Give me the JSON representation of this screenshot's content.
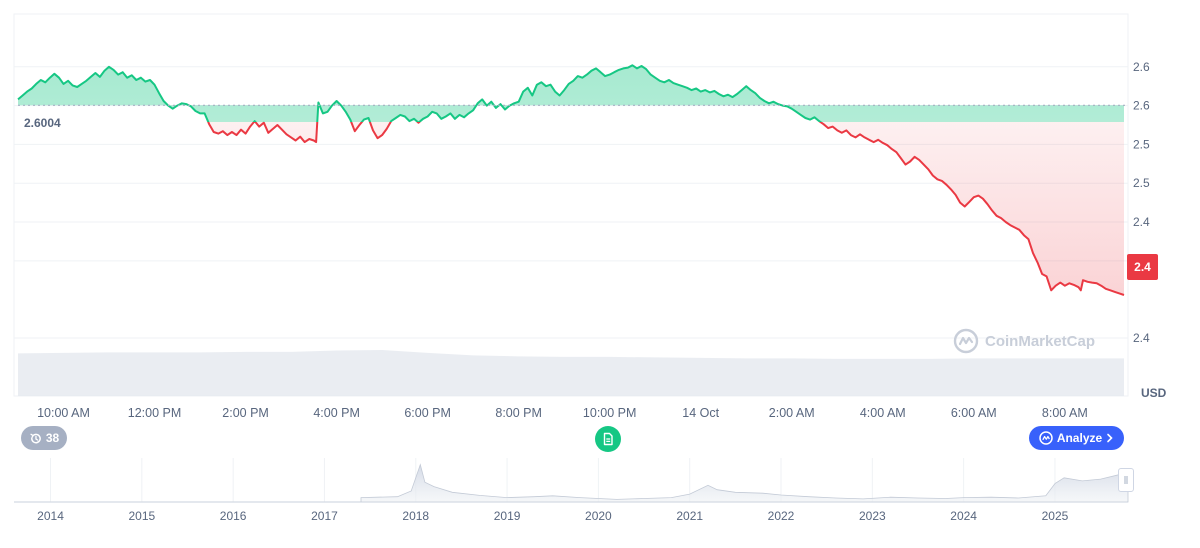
{
  "chart_data": {
    "type": "area",
    "unit": "USD",
    "reference_price": 2.6004,
    "reference_label": "2.6004",
    "current_price_label": "2.4",
    "ylim": [
      2.365,
      2.7
    ],
    "y_ticks": [
      {
        "value": 2.65,
        "label": "2.6"
      },
      {
        "value": 2.6,
        "label": "2.6"
      },
      {
        "value": 2.55,
        "label": "2.5"
      },
      {
        "value": 2.5,
        "label": "2.5"
      },
      {
        "value": 2.45,
        "label": "2.4"
      },
      {
        "value": 2.4,
        "label": "2.4"
      }
    ],
    "x_tick_labels": [
      "10:00 AM",
      "12:00 PM",
      "2:00 PM",
      "4:00 PM",
      "6:00 PM",
      "8:00 PM",
      "10:00 PM",
      "14 Oct",
      "2:00 AM",
      "4:00 AM",
      "6:00 AM",
      "8:00 AM"
    ],
    "x_range_hours": [
      9.0,
      33.3
    ],
    "price_series": [
      [
        9.0,
        2.608
      ],
      [
        9.1,
        2.613
      ],
      [
        9.2,
        2.618
      ],
      [
        9.3,
        2.622
      ],
      [
        9.4,
        2.628
      ],
      [
        9.5,
        2.633
      ],
      [
        9.6,
        2.63
      ],
      [
        9.7,
        2.636
      ],
      [
        9.8,
        2.641
      ],
      [
        9.9,
        2.636
      ],
      [
        10.0,
        2.628
      ],
      [
        10.1,
        2.632
      ],
      [
        10.2,
        2.626
      ],
      [
        10.3,
        2.624
      ],
      [
        10.4,
        2.628
      ],
      [
        10.5,
        2.632
      ],
      [
        10.6,
        2.637
      ],
      [
        10.7,
        2.642
      ],
      [
        10.8,
        2.637
      ],
      [
        10.9,
        2.645
      ],
      [
        11.0,
        2.65
      ],
      [
        11.1,
        2.646
      ],
      [
        11.2,
        2.64
      ],
      [
        11.3,
        2.643
      ],
      [
        11.4,
        2.636
      ],
      [
        11.5,
        2.639
      ],
      [
        11.6,
        2.633
      ],
      [
        11.7,
        2.636
      ],
      [
        11.8,
        2.631
      ],
      [
        11.9,
        2.633
      ],
      [
        12.0,
        2.627
      ],
      [
        12.1,
        2.616
      ],
      [
        12.2,
        2.606
      ],
      [
        12.3,
        2.6
      ],
      [
        12.4,
        2.596
      ],
      [
        12.5,
        2.6
      ],
      [
        12.6,
        2.603
      ],
      [
        12.7,
        2.602
      ],
      [
        12.8,
        2.599
      ],
      [
        12.9,
        2.593
      ],
      [
        13.0,
        2.59
      ],
      [
        13.1,
        2.59
      ],
      [
        13.2,
        2.576
      ],
      [
        13.3,
        2.566
      ],
      [
        13.4,
        2.564
      ],
      [
        13.5,
        2.567
      ],
      [
        13.6,
        2.562
      ],
      [
        13.7,
        2.566
      ],
      [
        13.8,
        2.562
      ],
      [
        13.9,
        2.569
      ],
      [
        14.0,
        2.564
      ],
      [
        14.1,
        2.573
      ],
      [
        14.2,
        2.58
      ],
      [
        14.3,
        2.573
      ],
      [
        14.4,
        2.578
      ],
      [
        14.5,
        2.565
      ],
      [
        14.6,
        2.57
      ],
      [
        14.7,
        2.575
      ],
      [
        14.8,
        2.569
      ],
      [
        14.9,
        2.563
      ],
      [
        15.0,
        2.559
      ],
      [
        15.1,
        2.555
      ],
      [
        15.2,
        2.56
      ],
      [
        15.3,
        2.553
      ],
      [
        15.4,
        2.557
      ],
      [
        15.5,
        2.555
      ],
      [
        15.55,
        2.553
      ],
      [
        15.6,
        2.604
      ],
      [
        15.7,
        2.59
      ],
      [
        15.8,
        2.592
      ],
      [
        15.9,
        2.6
      ],
      [
        16.0,
        2.606
      ],
      [
        16.1,
        2.6
      ],
      [
        16.2,
        2.592
      ],
      [
        16.3,
        2.582
      ],
      [
        16.4,
        2.567
      ],
      [
        16.5,
        2.575
      ],
      [
        16.6,
        2.582
      ],
      [
        16.7,
        2.584
      ],
      [
        16.8,
        2.568
      ],
      [
        16.9,
        2.558
      ],
      [
        17.0,
        2.562
      ],
      [
        17.1,
        2.57
      ],
      [
        17.2,
        2.58
      ],
      [
        17.3,
        2.584
      ],
      [
        17.4,
        2.588
      ],
      [
        17.5,
        2.586
      ],
      [
        17.6,
        2.58
      ],
      [
        17.7,
        2.583
      ],
      [
        17.8,
        2.578
      ],
      [
        17.9,
        2.583
      ],
      [
        18.0,
        2.586
      ],
      [
        18.1,
        2.592
      ],
      [
        18.2,
        2.59
      ],
      [
        18.3,
        2.583
      ],
      [
        18.4,
        2.586
      ],
      [
        18.5,
        2.59
      ],
      [
        18.6,
        2.583
      ],
      [
        18.7,
        2.588
      ],
      [
        18.8,
        2.585
      ],
      [
        18.9,
        2.59
      ],
      [
        19.0,
        2.594
      ],
      [
        19.1,
        2.603
      ],
      [
        19.2,
        2.608
      ],
      [
        19.3,
        2.6
      ],
      [
        19.4,
        2.605
      ],
      [
        19.5,
        2.597
      ],
      [
        19.6,
        2.602
      ],
      [
        19.7,
        2.595
      ],
      [
        19.8,
        2.6
      ],
      [
        19.9,
        2.603
      ],
      [
        20.0,
        2.605
      ],
      [
        20.1,
        2.618
      ],
      [
        20.2,
        2.623
      ],
      [
        20.3,
        2.613
      ],
      [
        20.4,
        2.627
      ],
      [
        20.5,
        2.63
      ],
      [
        20.6,
        2.625
      ],
      [
        20.7,
        2.627
      ],
      [
        20.8,
        2.618
      ],
      [
        20.9,
        2.613
      ],
      [
        21.0,
        2.62
      ],
      [
        21.1,
        2.628
      ],
      [
        21.2,
        2.632
      ],
      [
        21.3,
        2.638
      ],
      [
        21.4,
        2.636
      ],
      [
        21.5,
        2.64
      ],
      [
        21.6,
        2.645
      ],
      [
        21.7,
        2.648
      ],
      [
        21.8,
        2.643
      ],
      [
        21.9,
        2.638
      ],
      [
        22.0,
        2.64
      ],
      [
        22.1,
        2.643
      ],
      [
        22.2,
        2.646
      ],
      [
        22.3,
        2.648
      ],
      [
        22.4,
        2.649
      ],
      [
        22.5,
        2.652
      ],
      [
        22.6,
        2.648
      ],
      [
        22.7,
        2.651
      ],
      [
        22.8,
        2.647
      ],
      [
        22.9,
        2.64
      ],
      [
        23.0,
        2.636
      ],
      [
        23.1,
        2.632
      ],
      [
        23.2,
        2.63
      ],
      [
        23.3,
        2.633
      ],
      [
        23.4,
        2.629
      ],
      [
        23.5,
        2.627
      ],
      [
        23.6,
        2.625
      ],
      [
        23.7,
        2.623
      ],
      [
        23.8,
        2.62
      ],
      [
        23.9,
        2.622
      ],
      [
        24.0,
        2.618
      ],
      [
        24.1,
        2.62
      ],
      [
        24.2,
        2.617
      ],
      [
        24.3,
        2.619
      ],
      [
        24.4,
        2.615
      ],
      [
        24.5,
        2.612
      ],
      [
        24.6,
        2.614
      ],
      [
        24.7,
        2.611
      ],
      [
        24.8,
        2.615
      ],
      [
        24.9,
        2.62
      ],
      [
        25.0,
        2.625
      ],
      [
        25.1,
        2.62
      ],
      [
        25.2,
        2.616
      ],
      [
        25.3,
        2.61
      ],
      [
        25.4,
        2.606
      ],
      [
        25.5,
        2.603
      ],
      [
        25.6,
        2.605
      ],
      [
        25.7,
        2.602
      ],
      [
        25.8,
        2.6
      ],
      [
        25.9,
        2.599
      ],
      [
        26.0,
        2.596
      ],
      [
        26.1,
        2.592
      ],
      [
        26.2,
        2.588
      ],
      [
        26.3,
        2.584
      ],
      [
        26.4,
        2.582
      ],
      [
        26.5,
        2.585
      ],
      [
        26.6,
        2.58
      ],
      [
        26.7,
        2.576
      ],
      [
        26.8,
        2.571
      ],
      [
        26.9,
        2.573
      ],
      [
        27.0,
        2.568
      ],
      [
        27.1,
        2.565
      ],
      [
        27.2,
        2.568
      ],
      [
        27.3,
        2.562
      ],
      [
        27.4,
        2.559
      ],
      [
        27.5,
        2.563
      ],
      [
        27.6,
        2.559
      ],
      [
        27.7,
        2.556
      ],
      [
        27.8,
        2.553
      ],
      [
        27.9,
        2.556
      ],
      [
        28.0,
        2.552
      ],
      [
        28.1,
        2.549
      ],
      [
        28.2,
        2.544
      ],
      [
        28.3,
        2.54
      ],
      [
        28.4,
        2.532
      ],
      [
        28.5,
        2.524
      ],
      [
        28.6,
        2.528
      ],
      [
        28.7,
        2.534
      ],
      [
        28.8,
        2.53
      ],
      [
        28.9,
        2.524
      ],
      [
        29.0,
        2.518
      ],
      [
        29.1,
        2.51
      ],
      [
        29.2,
        2.505
      ],
      [
        29.3,
        2.503
      ],
      [
        29.4,
        2.498
      ],
      [
        29.5,
        2.492
      ],
      [
        29.6,
        2.485
      ],
      [
        29.7,
        2.475
      ],
      [
        29.8,
        2.47
      ],
      [
        29.9,
        2.476
      ],
      [
        30.0,
        2.482
      ],
      [
        30.1,
        2.484
      ],
      [
        30.2,
        2.48
      ],
      [
        30.3,
        2.473
      ],
      [
        30.4,
        2.465
      ],
      [
        30.5,
        2.458
      ],
      [
        30.6,
        2.455
      ],
      [
        30.7,
        2.45
      ],
      [
        30.8,
        2.446
      ],
      [
        30.9,
        2.443
      ],
      [
        31.0,
        2.44
      ],
      [
        31.1,
        2.433
      ],
      [
        31.2,
        2.428
      ],
      [
        31.3,
        2.41
      ],
      [
        31.4,
        2.398
      ],
      [
        31.5,
        2.383
      ],
      [
        31.6,
        2.38
      ],
      [
        31.7,
        2.362
      ],
      [
        31.8,
        2.368
      ],
      [
        31.9,
        2.372
      ],
      [
        32.0,
        2.368
      ],
      [
        32.1,
        2.371
      ],
      [
        32.2,
        2.369
      ],
      [
        32.3,
        2.366
      ],
      [
        32.35,
        2.362
      ],
      [
        32.4,
        2.375
      ],
      [
        32.5,
        2.373
      ],
      [
        32.6,
        2.372
      ],
      [
        32.7,
        2.371
      ],
      [
        32.8,
        2.368
      ],
      [
        32.9,
        2.364
      ],
      [
        33.0,
        2.362
      ],
      [
        33.1,
        2.36
      ],
      [
        33.2,
        2.358
      ],
      [
        33.3,
        2.356
      ]
    ],
    "volume_series": [
      [
        9.0,
        0.86
      ],
      [
        10.0,
        0.87
      ],
      [
        11.0,
        0.88
      ],
      [
        12.0,
        0.88
      ],
      [
        13.0,
        0.88
      ],
      [
        14.0,
        0.89
      ],
      [
        15.0,
        0.89
      ],
      [
        16.0,
        0.92
      ],
      [
        17.0,
        0.93
      ],
      [
        18.0,
        0.87
      ],
      [
        19.0,
        0.82
      ],
      [
        20.0,
        0.8
      ],
      [
        21.0,
        0.79
      ],
      [
        22.0,
        0.79
      ],
      [
        23.0,
        0.78
      ],
      [
        24.0,
        0.77
      ],
      [
        25.0,
        0.76
      ],
      [
        26.0,
        0.76
      ],
      [
        27.0,
        0.75
      ],
      [
        28.0,
        0.75
      ],
      [
        29.0,
        0.75
      ],
      [
        30.0,
        0.76
      ],
      [
        31.0,
        0.76
      ],
      [
        32.0,
        0.76
      ],
      [
        33.3,
        0.76
      ]
    ],
    "navigator": {
      "year_labels": [
        "2014",
        "2015",
        "2016",
        "2017",
        "2018",
        "2019",
        "2020",
        "2021",
        "2022",
        "2023",
        "2024",
        "2025"
      ],
      "x_range_years": [
        2013.6,
        2025.8
      ],
      "series": [
        [
          2013.6,
          0
        ],
        [
          2017.4,
          0.0
        ],
        [
          2017.4,
          0.1
        ],
        [
          2017.8,
          0.12
        ],
        [
          2017.95,
          0.25
        ],
        [
          2018.05,
          0.85
        ],
        [
          2018.1,
          0.45
        ],
        [
          2018.2,
          0.35
        ],
        [
          2018.4,
          0.22
        ],
        [
          2018.7,
          0.15
        ],
        [
          2019.0,
          0.1
        ],
        [
          2019.3,
          0.12
        ],
        [
          2019.5,
          0.14
        ],
        [
          2019.8,
          0.1
        ],
        [
          2020.0,
          0.08
        ],
        [
          2020.2,
          0.06
        ],
        [
          2020.5,
          0.08
        ],
        [
          2020.8,
          0.1
        ],
        [
          2021.0,
          0.18
        ],
        [
          2021.2,
          0.38
        ],
        [
          2021.3,
          0.28
        ],
        [
          2021.5,
          0.22
        ],
        [
          2021.8,
          0.2
        ],
        [
          2022.0,
          0.16
        ],
        [
          2022.3,
          0.12
        ],
        [
          2022.6,
          0.09
        ],
        [
          2022.9,
          0.07
        ],
        [
          2023.2,
          0.11
        ],
        [
          2023.5,
          0.09
        ],
        [
          2023.8,
          0.08
        ],
        [
          2024.0,
          0.1
        ],
        [
          2024.3,
          0.11
        ],
        [
          2024.6,
          0.09
        ],
        [
          2024.9,
          0.14
        ],
        [
          2025.0,
          0.42
        ],
        [
          2025.1,
          0.55
        ],
        [
          2025.3,
          0.48
        ],
        [
          2025.5,
          0.52
        ],
        [
          2025.7,
          0.62
        ],
        [
          2025.8,
          0.58
        ]
      ]
    }
  },
  "ui": {
    "history_count": "38",
    "analyze_label": "Analyze",
    "watermark": "CoinMarketCap",
    "colors": {
      "up": "#16c784",
      "down": "#ea3943",
      "grid": "#eff2f5",
      "volume": "#e3e7ee",
      "accent": "#3861fb"
    }
  }
}
